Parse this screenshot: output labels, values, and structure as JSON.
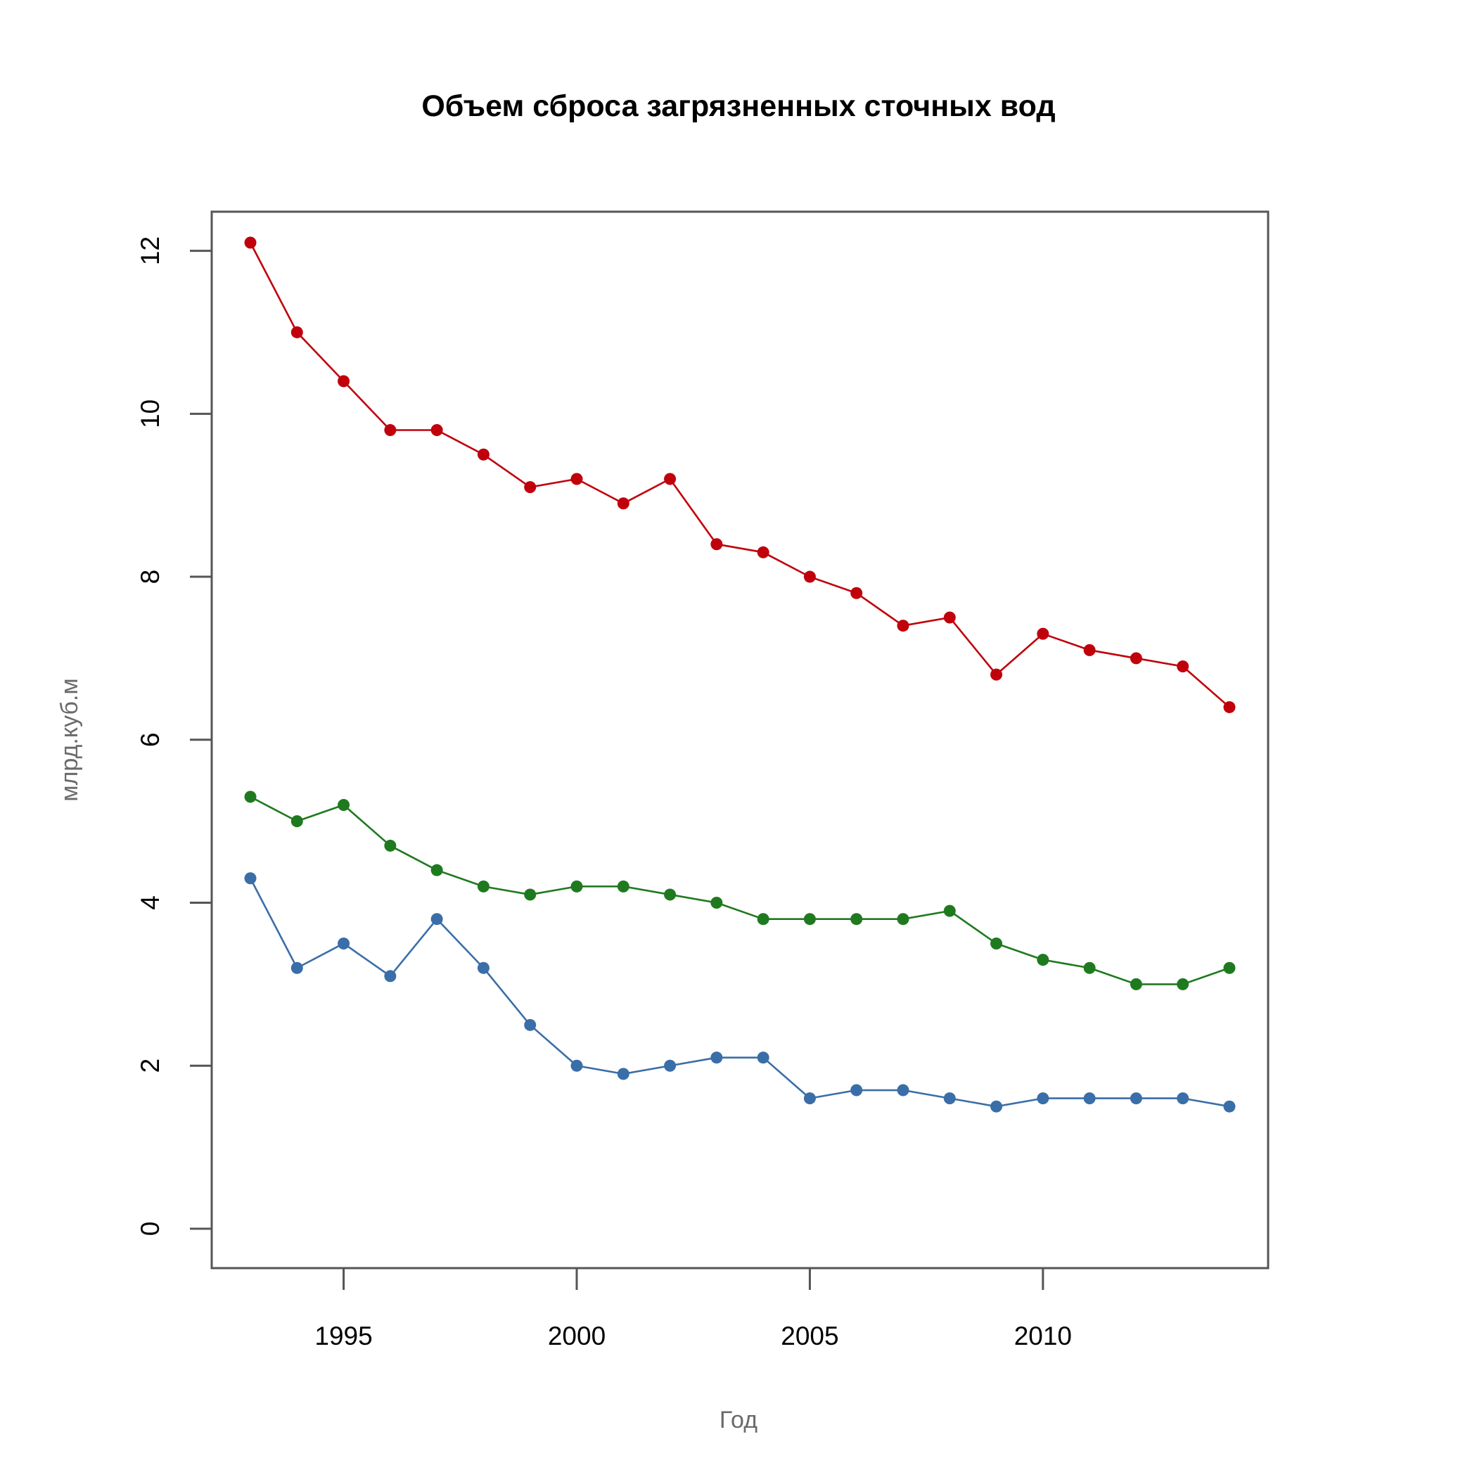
{
  "chart_data": {
    "type": "line",
    "title": "Объем сброса загрязненных сточных вод",
    "xlabel": "Год",
    "ylabel": "млрд.куб.м",
    "x": [
      1993,
      1994,
      1995,
      1996,
      1997,
      1998,
      1999,
      2000,
      2001,
      2002,
      2003,
      2004,
      2005,
      2006,
      2007,
      2008,
      2009,
      2010,
      2011,
      2012,
      2013,
      2014
    ],
    "xlim": [
      1993,
      2014
    ],
    "ylim": [
      0,
      12.1
    ],
    "xticks": [
      "1995",
      "2000",
      "2005",
      "2010"
    ],
    "yticks": [
      "0",
      "2",
      "4",
      "6",
      "8",
      "10",
      "12"
    ],
    "grid": false,
    "legend": "none",
    "series": [
      {
        "color": "#c0000b",
        "values": [
          12.1,
          11.0,
          10.4,
          9.8,
          9.8,
          9.5,
          9.1,
          9.2,
          8.9,
          9.2,
          8.4,
          8.3,
          8.0,
          7.8,
          7.4,
          7.5,
          6.8,
          7.3,
          7.1,
          7.0,
          6.9,
          6.4
        ]
      },
      {
        "color": "#1f7a1f",
        "values": [
          5.3,
          5.0,
          5.2,
          4.7,
          4.4,
          4.2,
          4.1,
          4.2,
          4.2,
          4.1,
          4.0,
          3.8,
          3.8,
          3.8,
          3.8,
          3.9,
          3.5,
          3.3,
          3.2,
          3.0,
          3.0,
          3.2
        ]
      },
      {
        "color": "#3a6ea8",
        "values": [
          4.3,
          3.2,
          3.5,
          3.1,
          3.8,
          3.2,
          2.5,
          2.0,
          1.9,
          2.0,
          2.1,
          2.1,
          1.6,
          1.7,
          1.7,
          1.6,
          1.5,
          1.6,
          1.6,
          1.6,
          1.6,
          1.5
        ]
      }
    ]
  }
}
